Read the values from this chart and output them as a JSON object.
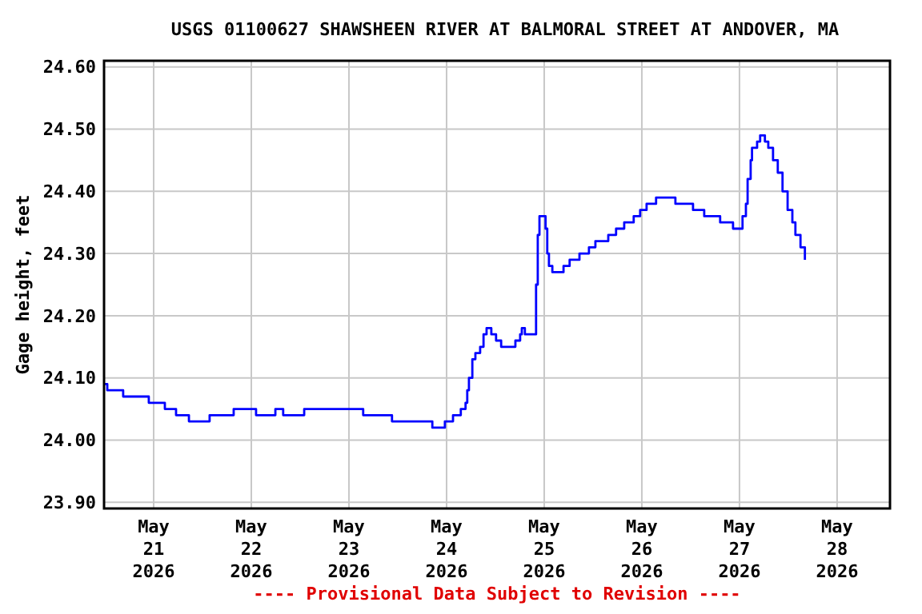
{
  "chart_data": {
    "type": "step",
    "title": "USGS 01100627 SHAWSHEEN RIVER AT BALMORAL STREET AT ANDOVER, MA",
    "ylabel": "Gage height, feet",
    "annotations": [
      "---- Provisional Data Subject to Revision ----"
    ],
    "xlim": [
      "2026-05-20T11:48",
      "2026-05-28T13:00"
    ],
    "xticks": [
      {
        "value": "2026-05-21",
        "label": "May\n21\n2026"
      },
      {
        "value": "2026-05-22",
        "label": "May\n22\n2026"
      },
      {
        "value": "2026-05-23",
        "label": "May\n23\n2026"
      },
      {
        "value": "2026-05-24",
        "label": "May\n24\n2026"
      },
      {
        "value": "2026-05-25",
        "label": "May\n25\n2026"
      },
      {
        "value": "2026-05-26",
        "label": "May\n26\n2026"
      },
      {
        "value": "2026-05-27",
        "label": "May\n27\n2026"
      },
      {
        "value": "2026-05-28",
        "label": "May\n28\n2026"
      }
    ],
    "ylim": [
      23.89,
      24.61
    ],
    "yticks": [
      {
        "value": 23.9,
        "label": "23.90"
      },
      {
        "value": 24.0,
        "label": "24.00"
      },
      {
        "value": 24.1,
        "label": "24.10"
      },
      {
        "value": 24.2,
        "label": "24.20"
      },
      {
        "value": 24.3,
        "label": "24.30"
      },
      {
        "value": 24.4,
        "label": "24.40"
      },
      {
        "value": 24.5,
        "label": "24.50"
      },
      {
        "value": 24.6,
        "label": "24.60"
      }
    ],
    "grid": true,
    "series": [
      {
        "color": "#0000ff",
        "x": [
          "2026-05-20T12:00",
          "2026-05-20T12:36",
          "2026-05-20T16:30",
          "2026-05-20T22:48",
          "2026-05-21T02:45",
          "2026-05-21T05:30",
          "2026-05-21T08:40",
          "2026-05-21T13:45",
          "2026-05-21T19:40",
          "2026-05-22T01:10",
          "2026-05-22T05:55",
          "2026-05-22T07:50",
          "2026-05-22T13:00",
          "2026-05-23T03:30",
          "2026-05-23T10:35",
          "2026-05-23T20:30",
          "2026-05-23T23:35",
          "2026-05-24T01:35",
          "2026-05-24T03:30",
          "2026-05-24T04:40",
          "2026-05-24T05:05",
          "2026-05-24T05:30",
          "2026-05-24T06:20",
          "2026-05-24T07:05",
          "2026-05-24T08:15",
          "2026-05-24T09:05",
          "2026-05-24T09:50",
          "2026-05-24T11:00",
          "2026-05-24T12:10",
          "2026-05-24T13:25",
          "2026-05-24T16:55",
          "2026-05-24T18:05",
          "2026-05-24T18:30",
          "2026-05-24T19:15",
          "2026-05-24T22:00",
          "2026-05-24T22:25",
          "2026-05-24T22:50",
          "2026-05-25T00:20",
          "2026-05-25T00:45",
          "2026-05-25T01:10",
          "2026-05-25T02:00",
          "2026-05-25T04:45",
          "2026-05-25T06:15",
          "2026-05-25T08:40",
          "2026-05-25T11:00",
          "2026-05-25T12:35",
          "2026-05-25T15:45",
          "2026-05-25T17:40",
          "2026-05-25T19:40",
          "2026-05-25T22:00",
          "2026-05-25T23:35",
          "2026-05-26T01:10",
          "2026-05-26T03:30",
          "2026-05-26T08:15",
          "2026-05-26T12:35",
          "2026-05-26T15:20",
          "2026-05-26T19:15",
          "2026-05-26T22:25",
          "2026-05-27T00:45",
          "2026-05-27T01:35",
          "2026-05-27T02:00",
          "2026-05-27T02:45",
          "2026-05-27T03:05",
          "2026-05-27T04:20",
          "2026-05-27T05:05",
          "2026-05-27T06:15",
          "2026-05-27T07:05",
          "2026-05-27T08:15",
          "2026-05-27T09:25",
          "2026-05-27T10:35",
          "2026-05-27T11:50",
          "2026-05-27T13:00",
          "2026-05-27T13:45",
          "2026-05-27T15:00",
          "2026-05-27T16:05"
        ],
        "values": [
          24.09,
          24.08,
          24.07,
          24.06,
          24.05,
          24.04,
          24.03,
          24.04,
          24.05,
          24.04,
          24.05,
          24.04,
          24.05,
          24.04,
          24.03,
          24.02,
          24.03,
          24.04,
          24.05,
          24.06,
          24.08,
          24.1,
          24.13,
          24.14,
          24.15,
          24.17,
          24.18,
          24.17,
          24.16,
          24.15,
          24.16,
          24.17,
          24.18,
          24.17,
          24.25,
          24.33,
          24.36,
          24.34,
          24.3,
          24.28,
          24.27,
          24.28,
          24.29,
          24.3,
          24.31,
          24.32,
          24.33,
          24.34,
          24.35,
          24.36,
          24.37,
          24.38,
          24.39,
          24.38,
          24.37,
          24.36,
          24.35,
          24.34,
          24.36,
          24.38,
          24.42,
          24.45,
          24.47,
          24.48,
          24.49,
          24.48,
          24.47,
          24.45,
          24.43,
          24.4,
          24.37,
          24.35,
          24.33,
          24.31,
          24.29
        ]
      }
    ]
  }
}
